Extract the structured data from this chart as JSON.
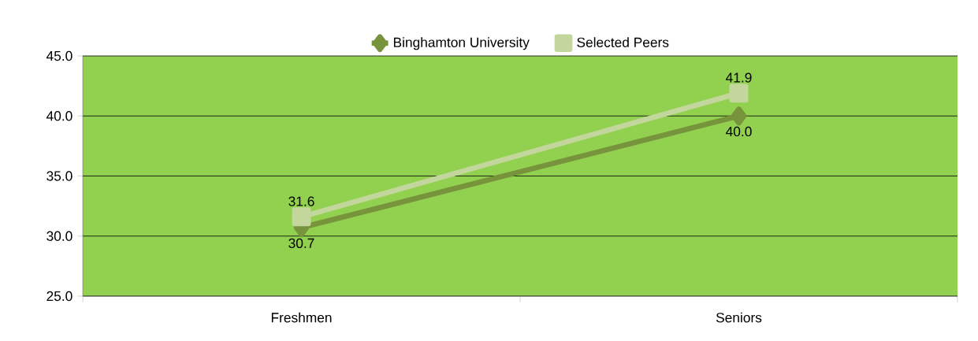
{
  "chart_data": {
    "type": "line",
    "categories": [
      "Freshmen",
      "Seniors"
    ],
    "series": [
      {
        "name": "Binghamton University",
        "color": "#77933c",
        "marker": "diamond",
        "values": [
          30.7,
          40.0
        ],
        "value_labels": [
          "30.7",
          "40.0"
        ]
      },
      {
        "name": "Selected Peers",
        "color": "#c3d69b",
        "marker": "square",
        "values": [
          31.6,
          41.9
        ],
        "value_labels": [
          "31.6",
          "41.9"
        ]
      }
    ],
    "ylim": [
      25,
      45
    ],
    "yticks": [
      {
        "value": 25,
        "label": "25.0"
      },
      {
        "value": 30,
        "label": "30.0"
      },
      {
        "value": 35,
        "label": "35.0"
      },
      {
        "value": 40,
        "label": "40.0"
      },
      {
        "value": 45,
        "label": "45.0"
      }
    ],
    "grid": "y",
    "legend": "top"
  }
}
